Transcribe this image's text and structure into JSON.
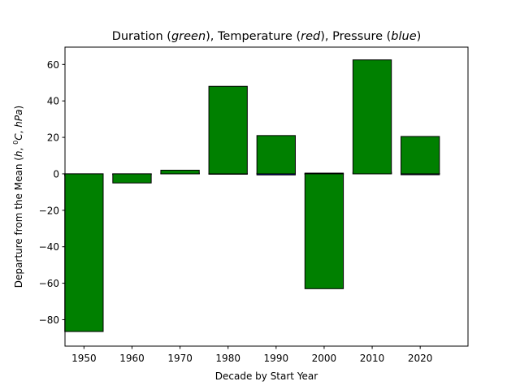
{
  "chart_data": {
    "type": "bar",
    "title": {
      "p1": "Duration (",
      "green": "green",
      "p2": "),  Temperature (",
      "red": "red",
      "p3": "),  Pressure (",
      "blue": "blue",
      "p4": ")"
    },
    "xlabel": "Decade by Start Year",
    "ylabel": {
      "prefix": "Departure from the Mean (",
      "h": "h",
      "sep1": ", ",
      "sup0": "0",
      "C": "C",
      "sep2": ", ",
      "hpa": "hPa",
      "suffix": ")"
    },
    "xlim": [
      1946.05,
      2029.95
    ],
    "ylim": [
      -94.5,
      69.5
    ],
    "xticks": [
      1950,
      1960,
      1970,
      1980,
      1990,
      2000,
      2010,
      2020
    ],
    "yticks": [
      -80,
      -60,
      -40,
      -20,
      0,
      20,
      40,
      60
    ],
    "ytick_labels": [
      "−80",
      "−60",
      "−40",
      "−20",
      "0",
      "20",
      "40",
      "60"
    ],
    "bar_width": 8,
    "x": [
      1950,
      1960,
      1970,
      1980,
      1990,
      2000,
      2010,
      2020
    ],
    "series": [
      {
        "name": "Pressure",
        "color": "#0000ff",
        "values": [
          -1.0,
          -0.5,
          0.3,
          -0.2,
          -0.6,
          0.4,
          0.9,
          -0.5
        ]
      },
      {
        "name": "Temperature",
        "color": "#ff0000",
        "values": [
          -0.6,
          -0.3,
          0.4,
          0.2,
          0.3,
          -0.2,
          0.5,
          0.2
        ]
      },
      {
        "name": "Duration",
        "color": "#008000",
        "values": [
          -86.5,
          -5.0,
          2.0,
          48.0,
          21.0,
          -63.0,
          62.5,
          20.5
        ]
      }
    ]
  }
}
